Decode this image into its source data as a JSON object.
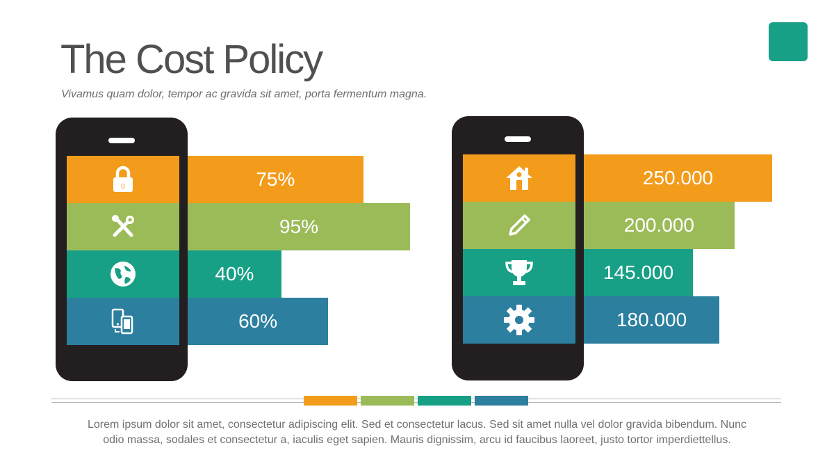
{
  "slide": {
    "title": "The Cost Policy",
    "subtitle": "Vivamus quam dolor, tempor ac gravida sit amet, porta fermentum magna.",
    "footer_line1": "Lorem ipsum dolor sit amet, consectetur adipiscing elit. Sed et consectetur lacus. Sed sit amet nulla vel dolor gravida bibendum. Nunc",
    "footer_line2": "odio massa, sodales et consectetur a, iaculis eget sapien. Mauris dignissim, arcu id faucibus laoreet, justo tortor imperdiettellus."
  },
  "colors": {
    "orange": "#f39c1b",
    "green": "#9bbb59",
    "teal": "#17a085",
    "blue": "#2c7f9e",
    "phone": "#231f20",
    "accent": "#17a085"
  },
  "chart_data": [
    {
      "type": "bar",
      "orientation": "horizontal",
      "categories": [
        "lock-icon",
        "tools-icon",
        "globe-icon",
        "devices-icon"
      ],
      "values": [
        75,
        95,
        40,
        60
      ],
      "value_labels": [
        "75%",
        "95%",
        "40%",
        "60%"
      ],
      "colors": [
        "#f39c1b",
        "#9bbb59",
        "#17a085",
        "#2c7f9e"
      ]
    },
    {
      "type": "bar",
      "orientation": "horizontal",
      "categories": [
        "home-icon",
        "pencil-icon",
        "trophy-icon",
        "gear-icon"
      ],
      "values": [
        250000,
        200000,
        145000,
        180000
      ],
      "value_labels": [
        "250.000",
        "200.000",
        "145.000",
        "180.000"
      ],
      "colors": [
        "#f39c1b",
        "#9bbb59",
        "#17a085",
        "#2c7f9e"
      ]
    }
  ]
}
